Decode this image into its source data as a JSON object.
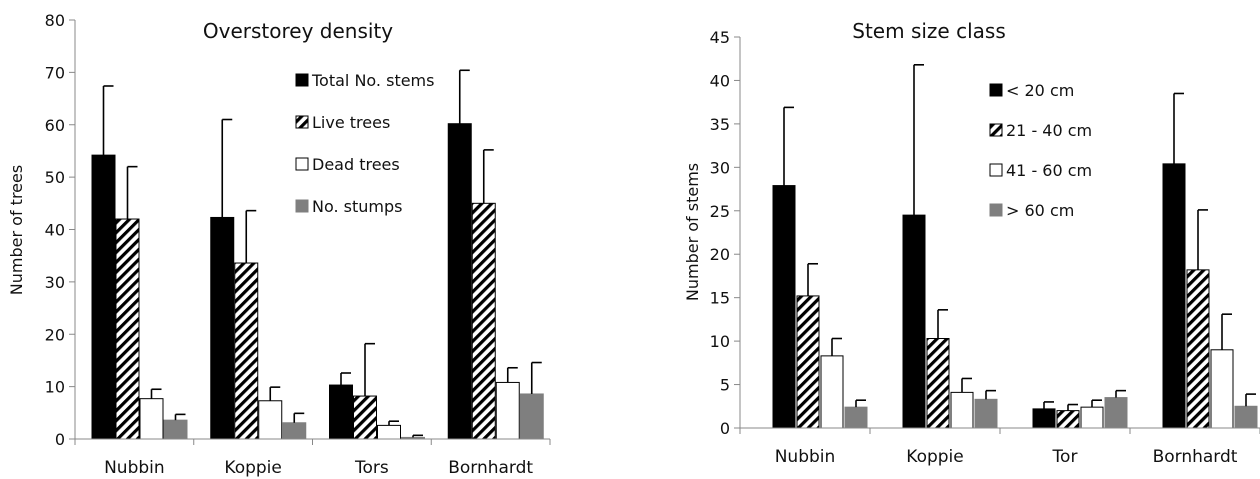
{
  "chart_data": [
    {
      "type": "bar",
      "title": "Overstorey density",
      "xlabel": "",
      "ylabel": "Number of trees",
      "ylim": [
        0,
        80
      ],
      "yticks": [
        0,
        10,
        20,
        30,
        40,
        50,
        60,
        70,
        80
      ],
      "grid": false,
      "legend_position": "top-right",
      "categories": [
        "Nubbin",
        "Koppie",
        "Tors",
        "Bornhardt"
      ],
      "series": [
        {
          "name": "Total No. stems",
          "style": "solid",
          "color": "#000000",
          "values": [
            54.2,
            42.3,
            10.3,
            60.2
          ],
          "errors": [
            13.2,
            18.7,
            2.3,
            10.2
          ]
        },
        {
          "name": "Live trees",
          "style": "hatched",
          "color": "#000000",
          "values": [
            42.0,
            33.6,
            8.2,
            45.0
          ],
          "errors": [
            10.0,
            10.0,
            10.0,
            10.2
          ]
        },
        {
          "name": "Dead trees",
          "style": "white",
          "color": "#ffffff",
          "values": [
            7.7,
            7.3,
            2.6,
            10.8
          ],
          "errors": [
            1.8,
            2.6,
            0.8,
            2.8
          ]
        },
        {
          "name": "No. stumps",
          "style": "gray",
          "color": "#7f7f7f",
          "values": [
            3.6,
            3.1,
            0.3,
            8.6
          ],
          "errors": [
            1.1,
            1.8,
            0.4,
            6.0
          ]
        }
      ]
    },
    {
      "type": "bar",
      "title": "Stem size class",
      "xlabel": "",
      "ylabel": "Number of stems",
      "ylim": [
        0,
        45
      ],
      "yticks": [
        0,
        5,
        10,
        15,
        20,
        25,
        30,
        35,
        40,
        45
      ],
      "grid": false,
      "legend_position": "top-right",
      "categories": [
        "Nubbin",
        "Koppie",
        "Tor",
        "Bornhardt"
      ],
      "series": [
        {
          "name": "< 20 cm",
          "style": "solid",
          "color": "#000000",
          "values": [
            27.9,
            24.5,
            2.2,
            30.4
          ],
          "errors": [
            9.0,
            17.3,
            0.8,
            8.1
          ]
        },
        {
          "name": "21 - 40 cm",
          "style": "hatched",
          "color": "#000000",
          "values": [
            15.2,
            10.3,
            2.0,
            18.2
          ],
          "errors": [
            3.7,
            3.3,
            0.7,
            6.9
          ]
        },
        {
          "name": "41 - 60 cm",
          "style": "white",
          "color": "#ffffff",
          "values": [
            8.3,
            4.1,
            2.4,
            9.0
          ],
          "errors": [
            2.0,
            1.6,
            0.8,
            4.1
          ]
        },
        {
          "name": "> 60 cm",
          "style": "gray",
          "color": "#7f7f7f",
          "values": [
            2.4,
            3.3,
            3.5,
            2.5
          ],
          "errors": [
            0.8,
            1.0,
            0.8,
            1.4
          ]
        }
      ]
    }
  ]
}
